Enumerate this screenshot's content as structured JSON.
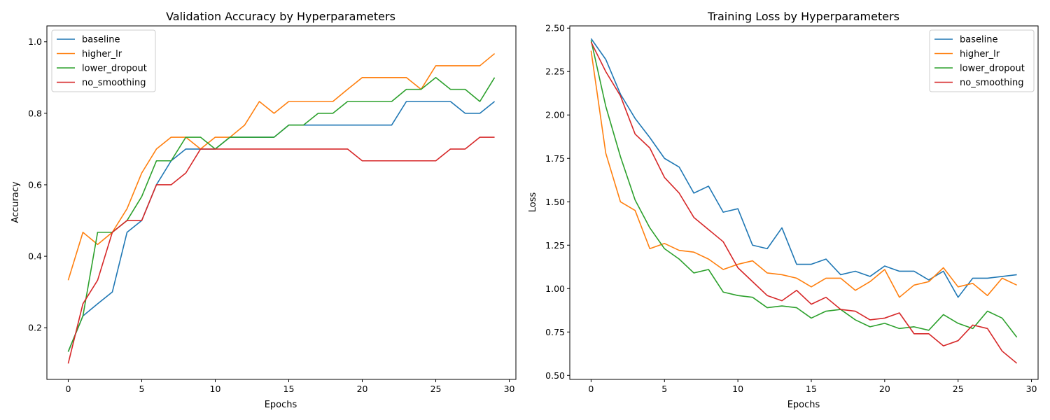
{
  "chart_data": [
    {
      "type": "line",
      "title": "Validation Accuracy by Hyperparameters",
      "xlabel": "Epochs",
      "ylabel": "Accuracy",
      "xlim": [
        -1.45,
        30.45
      ],
      "ylim": [
        0.0555,
        1.0445
      ],
      "xticks": [
        0,
        5,
        10,
        15,
        20,
        25,
        30
      ],
      "yticks": [
        0.2,
        0.4,
        0.6,
        0.8,
        1.0
      ],
      "ytick_labels": [
        "0.2",
        "0.4",
        "0.6",
        "0.8",
        "1.0"
      ],
      "legend": "upper-left",
      "grid": false,
      "x": [
        0,
        1,
        2,
        3,
        4,
        5,
        6,
        7,
        8,
        9,
        10,
        11,
        12,
        13,
        14,
        15,
        16,
        17,
        18,
        19,
        20,
        21,
        22,
        23,
        24,
        25,
        26,
        27,
        28,
        29
      ],
      "series": [
        {
          "name": "baseline",
          "color": "#1f77b4",
          "values": [
            0.133,
            0.233,
            0.267,
            0.3,
            0.467,
            0.5,
            0.6,
            0.667,
            0.7,
            0.7,
            0.7,
            0.733,
            0.733,
            0.733,
            0.733,
            0.767,
            0.767,
            0.767,
            0.767,
            0.767,
            0.767,
            0.767,
            0.767,
            0.833,
            0.833,
            0.833,
            0.833,
            0.8,
            0.8,
            0.833
          ]
        },
        {
          "name": "higher_lr",
          "color": "#ff7f0e",
          "values": [
            0.333,
            0.467,
            0.433,
            0.467,
            0.533,
            0.633,
            0.7,
            0.733,
            0.733,
            0.7,
            0.733,
            0.733,
            0.767,
            0.833,
            0.8,
            0.833,
            0.833,
            0.833,
            0.833,
            0.867,
            0.9,
            0.9,
            0.9,
            0.9,
            0.867,
            0.933,
            0.933,
            0.933,
            0.933,
            0.967
          ]
        },
        {
          "name": "lower_dropout",
          "color": "#2ca02c",
          "values": [
            0.133,
            0.233,
            0.467,
            0.467,
            0.5,
            0.567,
            0.667,
            0.667,
            0.733,
            0.733,
            0.7,
            0.733,
            0.733,
            0.733,
            0.733,
            0.767,
            0.767,
            0.8,
            0.8,
            0.833,
            0.833,
            0.833,
            0.833,
            0.867,
            0.867,
            0.9,
            0.867,
            0.867,
            0.833,
            0.9
          ]
        },
        {
          "name": "no_smoothing",
          "color": "#d62728",
          "values": [
            0.1,
            0.267,
            0.333,
            0.467,
            0.5,
            0.5,
            0.6,
            0.6,
            0.633,
            0.7,
            0.7,
            0.7,
            0.7,
            0.7,
            0.7,
            0.7,
            0.7,
            0.7,
            0.7,
            0.7,
            0.667,
            0.667,
            0.667,
            0.667,
            0.667,
            0.667,
            0.7,
            0.7,
            0.733,
            0.733
          ]
        }
      ]
    },
    {
      "type": "line",
      "title": "Training Loss by Hyperparameters",
      "xlabel": "Epochs",
      "ylabel": "Loss",
      "xlim": [
        -1.45,
        30.45
      ],
      "ylim": [
        0.477,
        2.513
      ],
      "xticks": [
        0,
        5,
        10,
        15,
        20,
        25,
        30
      ],
      "yticks": [
        0.5,
        0.75,
        1.0,
        1.25,
        1.5,
        1.75,
        2.0,
        2.25,
        2.5
      ],
      "ytick_labels": [
        "0.50",
        "0.75",
        "1.00",
        "1.25",
        "1.50",
        "1.75",
        "2.00",
        "2.25",
        "2.50"
      ],
      "legend": "upper-right",
      "grid": false,
      "x": [
        0,
        1,
        2,
        3,
        4,
        5,
        6,
        7,
        8,
        9,
        10,
        11,
        12,
        13,
        14,
        15,
        16,
        17,
        18,
        19,
        20,
        21,
        22,
        23,
        24,
        25,
        26,
        27,
        28,
        29
      ],
      "series": [
        {
          "name": "baseline",
          "color": "#1f77b4",
          "values": [
            2.44,
            2.32,
            2.12,
            1.98,
            1.87,
            1.75,
            1.7,
            1.55,
            1.59,
            1.44,
            1.46,
            1.25,
            1.23,
            1.35,
            1.14,
            1.14,
            1.17,
            1.08,
            1.1,
            1.07,
            1.13,
            1.1,
            1.1,
            1.05,
            1.1,
            0.95,
            1.06,
            1.06,
            1.07,
            1.08
          ]
        },
        {
          "name": "higher_lr",
          "color": "#ff7f0e",
          "values": [
            2.37,
            1.78,
            1.5,
            1.45,
            1.23,
            1.26,
            1.22,
            1.21,
            1.17,
            1.11,
            1.14,
            1.16,
            1.09,
            1.08,
            1.06,
            1.01,
            1.06,
            1.06,
            0.99,
            1.04,
            1.11,
            0.95,
            1.02,
            1.04,
            1.12,
            1.01,
            1.03,
            0.96,
            1.06,
            1.02
          ]
        },
        {
          "name": "lower_dropout",
          "color": "#2ca02c",
          "values": [
            2.43,
            2.05,
            1.76,
            1.51,
            1.35,
            1.23,
            1.17,
            1.09,
            1.11,
            0.98,
            0.96,
            0.95,
            0.89,
            0.9,
            0.89,
            0.83,
            0.87,
            0.88,
            0.82,
            0.78,
            0.8,
            0.77,
            0.78,
            0.76,
            0.85,
            0.8,
            0.77,
            0.87,
            0.83,
            0.72
          ]
        },
        {
          "name": "no_smoothing",
          "color": "#d62728",
          "values": [
            2.42,
            2.25,
            2.11,
            1.89,
            1.81,
            1.64,
            1.55,
            1.41,
            1.34,
            1.27,
            1.12,
            1.04,
            0.96,
            0.93,
            0.99,
            0.91,
            0.95,
            0.88,
            0.87,
            0.82,
            0.83,
            0.86,
            0.74,
            0.74,
            0.67,
            0.7,
            0.79,
            0.77,
            0.64,
            0.57
          ]
        }
      ]
    }
  ]
}
